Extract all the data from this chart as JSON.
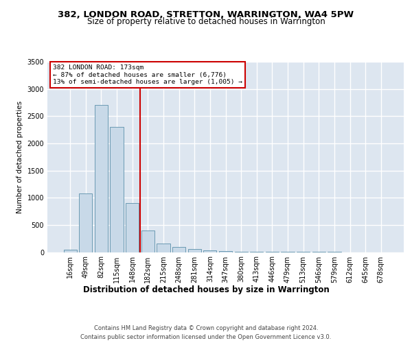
{
  "title": "382, LONDON ROAD, STRETTON, WARRINGTON, WA4 5PW",
  "subtitle": "Size of property relative to detached houses in Warrington",
  "xlabel": "Distribution of detached houses by size in Warrington",
  "ylabel": "Number of detached properties",
  "footer_line1": "Contains HM Land Registry data © Crown copyright and database right 2024.",
  "footer_line2": "Contains public sector information licensed under the Open Government Licence v3.0.",
  "categories": [
    "16sqm",
    "49sqm",
    "82sqm",
    "115sqm",
    "148sqm",
    "182sqm",
    "215sqm",
    "248sqm",
    "281sqm",
    "314sqm",
    "347sqm",
    "380sqm",
    "413sqm",
    "446sqm",
    "479sqm",
    "513sqm",
    "546sqm",
    "579sqm",
    "612sqm",
    "645sqm",
    "678sqm"
  ],
  "values": [
    50,
    1075,
    2700,
    2300,
    900,
    400,
    160,
    90,
    55,
    28,
    18,
    10,
    5,
    3,
    2,
    1,
    1,
    1,
    0,
    0,
    0
  ],
  "bar_color": "#c8d9e8",
  "bar_edge_color": "#5b8faa",
  "plot_bg_color": "#dde6f0",
  "grid_color": "#ffffff",
  "annotation_text": "382 LONDON ROAD: 173sqm\n← 87% of detached houses are smaller (6,776)\n13% of semi-detached houses are larger (1,005) →",
  "annotation_box_edge_color": "#cc0000",
  "vline_color": "#cc0000",
  "vline_x": 4.5,
  "ylim_max": 3500,
  "yticks": [
    0,
    500,
    1000,
    1500,
    2000,
    2500,
    3000,
    3500
  ],
  "title_fontsize": 9.5,
  "subtitle_fontsize": 8.5,
  "ylabel_fontsize": 7.5,
  "xlabel_fontsize": 8.5,
  "tick_fontsize": 7,
  "footer_fontsize": 6.0
}
